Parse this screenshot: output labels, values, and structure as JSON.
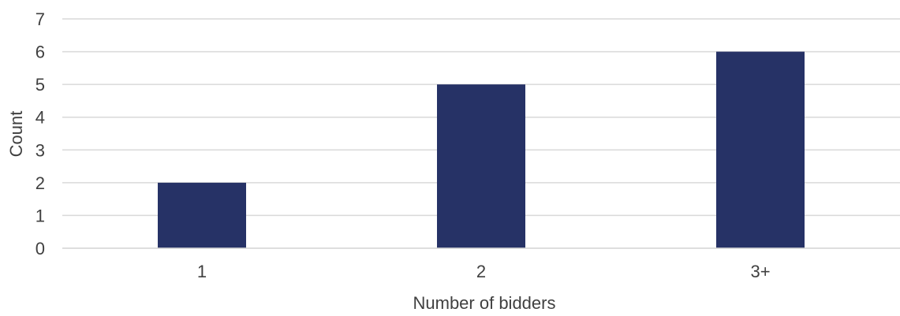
{
  "chart_data": {
    "type": "bar",
    "categories": [
      "1",
      "2",
      "3+"
    ],
    "values": [
      2,
      5,
      6
    ],
    "title": "",
    "xlabel": "Number of bidders",
    "ylabel": "Count",
    "ylim": [
      0,
      7
    ],
    "yticks": [
      "0",
      "1",
      "2",
      "3",
      "4",
      "5",
      "6",
      "7"
    ],
    "grid": true,
    "legend": "none",
    "bar_color": "#263266",
    "gridline_color": "#d9d9d9",
    "text_color": "#404040"
  }
}
